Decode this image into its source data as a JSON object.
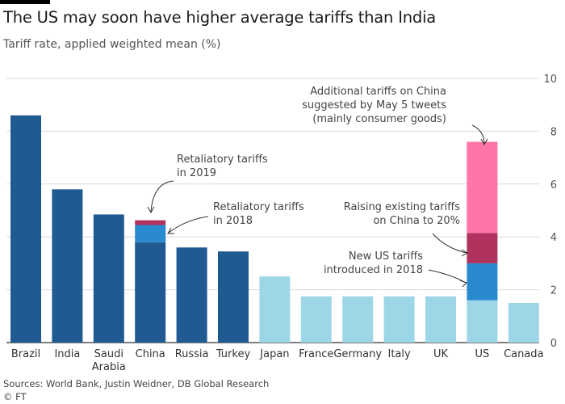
{
  "title": "The US may soon have higher average tariffs than India",
  "subtitle": "Tariff rate, applied weighted mean (%)",
  "source": "Sources: World Bank, Justin Weidner, DB Global Research",
  "credit": "© FT",
  "colors": {
    "dark_blue": "#1f5a93",
    "light_blue": "#9dd6e7",
    "retaliatory_2018": "#2a8ad0",
    "retaliatory_2019": "#b0325f",
    "us_new_2018": "#2a8ad0",
    "us_raising": "#b0325f",
    "us_additional": "#ff75a8",
    "grid": "#d9d9d9",
    "axis_text": "#555555"
  },
  "chart_data": {
    "type": "bar",
    "stacked": true,
    "categories": [
      "Brazil",
      "India",
      "Saudi\nArabia",
      "China",
      "Russia",
      "Turkey",
      "Japan",
      "France",
      "Germany",
      "Italy",
      "UK",
      "US",
      "Canada"
    ],
    "base_values": [
      8.6,
      5.8,
      4.85,
      3.8,
      3.6,
      3.45,
      2.5,
      1.75,
      1.75,
      1.75,
      1.75,
      1.6,
      1.5
    ],
    "base_colors": [
      "dark_blue",
      "dark_blue",
      "dark_blue",
      "dark_blue",
      "dark_blue",
      "dark_blue",
      "light_blue",
      "light_blue",
      "light_blue",
      "light_blue",
      "light_blue",
      "light_blue",
      "light_blue"
    ],
    "segments": [
      {
        "category_index": 3,
        "value": 0.65,
        "color": "retaliatory_2018"
      },
      {
        "category_index": 3,
        "value": 0.18,
        "color": "retaliatory_2019"
      },
      {
        "category_index": 11,
        "value": 1.4,
        "color": "us_new_2018"
      },
      {
        "category_index": 11,
        "value": 1.15,
        "color": "us_raising"
      },
      {
        "category_index": 11,
        "value": 3.45,
        "color": "us_additional"
      }
    ],
    "ylim": [
      0,
      10
    ],
    "yticks": [
      0,
      2,
      4,
      6,
      8,
      10
    ],
    "grid": true,
    "annotations": [
      {
        "lines": [
          "Retaliatory tariffs",
          "in 2019"
        ],
        "anchor": "start"
      },
      {
        "lines": [
          "Retaliatory tariffs",
          "in 2018"
        ],
        "anchor": "start"
      },
      {
        "lines": [
          "Additional tariffs on China",
          "suggested by May 5 tweets",
          "(mainly consumer goods)"
        ],
        "anchor": "end"
      },
      {
        "lines": [
          "Raising existing tariffs",
          "on China to 20%"
        ],
        "anchor": "end"
      },
      {
        "lines": [
          "New US tariffs",
          "introduced in 2018"
        ],
        "anchor": "end"
      }
    ]
  }
}
